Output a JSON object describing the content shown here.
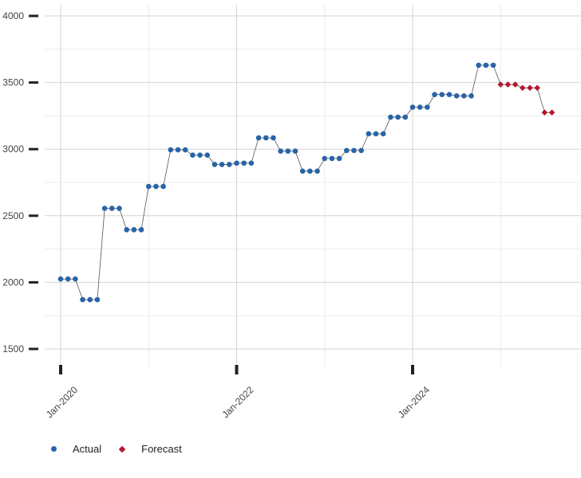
{
  "colors": {
    "actual": "#2a64a8",
    "forecast": "#b5152b",
    "line": "#555555",
    "grid_major": "#d4d4d4",
    "grid_minor": "#ececec",
    "tick": "#222222"
  },
  "legend": {
    "actual_label": "Actual",
    "forecast_label": "Forecast"
  },
  "chart_data": {
    "type": "line",
    "title": "",
    "xlabel": "",
    "ylabel": "",
    "ylim": [
      1450,
      4000
    ],
    "y_ticks": [
      1500,
      2000,
      2500,
      3000,
      3500,
      4000
    ],
    "x_ticks": [
      {
        "date": "2020-01",
        "label": "Jan-2020"
      },
      {
        "date": "2022-01",
        "label": "Jan-2022"
      },
      {
        "date": "2024-01",
        "label": "Jan-2024"
      }
    ],
    "x_start": "2019-11",
    "x_end": "2026-01",
    "grid": true,
    "legend_position": "bottom-left",
    "series": [
      {
        "name": "Actual",
        "x": [
          "2020-01",
          "2020-02",
          "2020-03",
          "2020-04",
          "2020-05",
          "2020-06",
          "2020-07",
          "2020-08",
          "2020-09",
          "2020-10",
          "2020-11",
          "2020-12",
          "2021-01",
          "2021-02",
          "2021-03",
          "2021-04",
          "2021-05",
          "2021-06",
          "2021-07",
          "2021-08",
          "2021-09",
          "2021-10",
          "2021-11",
          "2021-12",
          "2022-01",
          "2022-02",
          "2022-03",
          "2022-04",
          "2022-05",
          "2022-06",
          "2022-07",
          "2022-08",
          "2022-09",
          "2022-10",
          "2022-11",
          "2022-12",
          "2023-01",
          "2023-02",
          "2023-03",
          "2023-04",
          "2023-05",
          "2023-06",
          "2023-07",
          "2023-08",
          "2023-09",
          "2023-10",
          "2023-11",
          "2023-12",
          "2024-01",
          "2024-02",
          "2024-03",
          "2024-04",
          "2024-05",
          "2024-06",
          "2024-07",
          "2024-08",
          "2024-09",
          "2024-10",
          "2024-11",
          "2024-12"
        ],
        "values": [
          2025,
          2025,
          2025,
          1870,
          1870,
          1870,
          2555,
          2555,
          2555,
          2395,
          2395,
          2395,
          2720,
          2720,
          2720,
          2995,
          2995,
          2995,
          2955,
          2955,
          2955,
          2885,
          2885,
          2885,
          2895,
          2895,
          2895,
          3085,
          3085,
          3085,
          2985,
          2985,
          2985,
          2835,
          2835,
          2835,
          2930,
          2930,
          2930,
          2990,
          2990,
          2990,
          3115,
          3115,
          3115,
          3240,
          3240,
          3240,
          3315,
          3315,
          3315,
          3410,
          3410,
          3410,
          3400,
          3400,
          3400,
          3630,
          3630,
          3630
        ]
      },
      {
        "name": "Forecast",
        "x": [
          "2025-01",
          "2025-02",
          "2025-03",
          "2025-04",
          "2025-05",
          "2025-06",
          "2025-07",
          "2025-08"
        ],
        "values": [
          3485,
          3485,
          3485,
          3460,
          3460,
          3460,
          3275,
          3275
        ]
      }
    ]
  }
}
